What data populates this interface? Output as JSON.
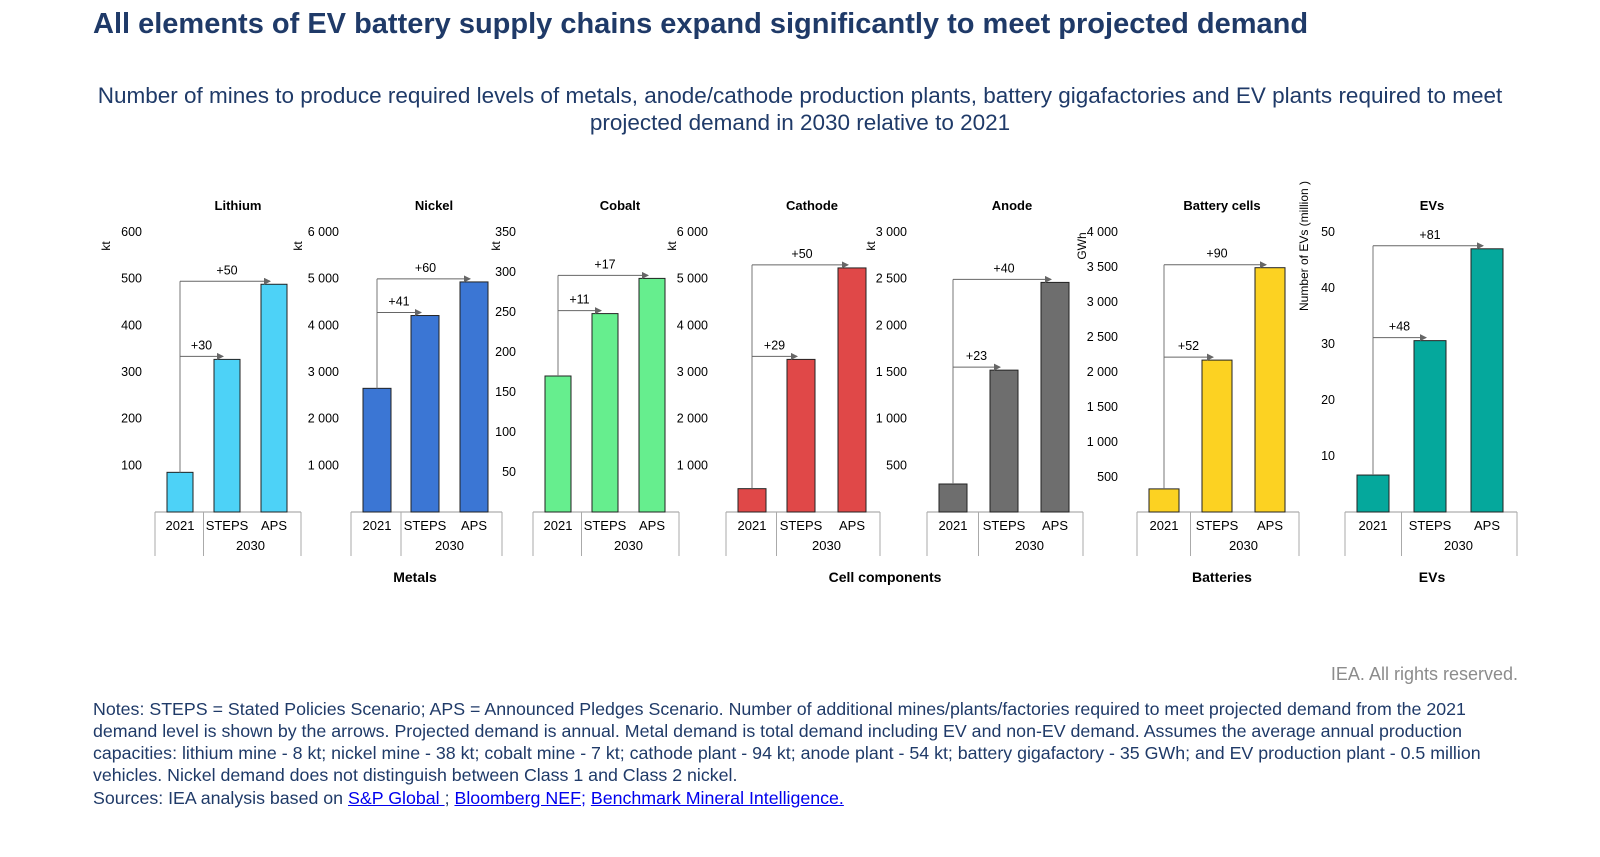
{
  "title": "All elements of EV battery supply chains expand significantly to meet projected demand",
  "subtitle": "Number of mines to produce required levels of metals, anode/cathode production plants, battery gigafactories and EV plants required to meet projected demand in 2030 relative to 2021",
  "copyright": "IEA. All rights reserved.",
  "notes": "Notes: STEPS = Stated Policies Scenario; APS = Announced Pledges Scenario. Number of additional mines/plants/factories required to meet projected demand from the 2021 demand level is shown by the arrows. Projected demand is annual. Metal demand is total demand including EV and non-EV demand. Assumes the average annual production capacities: lithium mine - 8 kt; nickel mine - 38 kt; cobalt mine - 7 kt; cathode plant - 94 kt; anode plant - 54 kt; battery gigafactory - 35 GWh; and EV production plant - 0.5 million vehicles. Nickel demand does not distinguish between Class 1 and Class 2 nickel.",
  "sources": {
    "prefix": "Sources: IEA analysis based on ",
    "link1": "S&P Global ",
    "sep1": "; ",
    "link2": "Bloomberg NEF;",
    "sep2": " ",
    "link3": "Benchmark Mineral Intelligence."
  },
  "groups": [
    "Metals",
    "Cell components",
    "Batteries",
    "EVs"
  ],
  "chart_data": [
    {
      "type": "bar",
      "title": "Lithium",
      "ylabel": "kt",
      "categories": [
        "2021",
        "STEPS",
        "APS"
      ],
      "group_label": "2030",
      "values": [
        85,
        327,
        488
      ],
      "ylim": [
        0,
        600
      ],
      "ticks": [
        100,
        200,
        300,
        400,
        500,
        600
      ],
      "ticklabels": [
        "100",
        "200",
        "300",
        "400",
        "500",
        "600"
      ],
      "arrows": [
        "+30",
        "+50"
      ],
      "color": "#4dd2f7"
    },
    {
      "type": "bar",
      "title": "Nickel",
      "ylabel": "kt",
      "categories": [
        "2021",
        "STEPS",
        "APS"
      ],
      "group_label": "2030",
      "values": [
        2650,
        4210,
        4930
      ],
      "ylim": [
        0,
        6000
      ],
      "ticks": [
        1000,
        2000,
        3000,
        4000,
        5000,
        6000
      ],
      "ticklabels": [
        "1 000",
        "2 000",
        "3 000",
        "4 000",
        "5 000",
        "6 000"
      ],
      "arrows": [
        "+41",
        "+60"
      ],
      "color": "#3b76d4"
    },
    {
      "type": "bar",
      "title": "Cobalt",
      "ylabel": "kt",
      "categories": [
        "2021",
        "STEPS",
        "APS"
      ],
      "group_label": "2030",
      "values": [
        170,
        248,
        292
      ],
      "ylim": [
        0,
        350
      ],
      "ticks": [
        50,
        100,
        150,
        200,
        250,
        300,
        350
      ],
      "ticklabels": [
        "50",
        "100",
        "150",
        "200",
        "250",
        "300",
        "350"
      ],
      "arrows": [
        "+11",
        "+17"
      ],
      "color": "#66ee8e"
    },
    {
      "type": "bar",
      "title": "Cathode",
      "ylabel": "kt",
      "categories": [
        "2021",
        "STEPS",
        "APS"
      ],
      "group_label": "2030",
      "values": [
        500,
        3270,
        5230
      ],
      "ylim": [
        0,
        6000
      ],
      "ticks": [
        1000,
        2000,
        3000,
        4000,
        5000,
        6000
      ],
      "ticklabels": [
        "1 000",
        "2 000",
        "3 000",
        "4 000",
        "5 000",
        "6 000"
      ],
      "arrows": [
        "+29",
        "+50"
      ],
      "color": "#e04848"
    },
    {
      "type": "bar",
      "title": "Anode",
      "ylabel": "kt",
      "categories": [
        "2021",
        "STEPS",
        "APS"
      ],
      "group_label": "2030",
      "values": [
        300,
        1520,
        2460
      ],
      "ylim": [
        0,
        3000
      ],
      "ticks": [
        500,
        1000,
        1500,
        2000,
        2500,
        3000
      ],
      "ticklabels": [
        "500",
        "1 000",
        "1 500",
        "2 000",
        "2 500",
        "3 000"
      ],
      "arrows": [
        "+23",
        "+40"
      ],
      "color": "#6e6e6e"
    },
    {
      "type": "bar",
      "title": "Battery cells",
      "ylabel": "GWh",
      "categories": [
        "2021",
        "STEPS",
        "APS"
      ],
      "group_label": "2030",
      "values": [
        330,
        2170,
        3490
      ],
      "ylim": [
        0,
        4000
      ],
      "ticks": [
        500,
        1000,
        1500,
        2000,
        2500,
        3000,
        3500,
        4000
      ],
      "ticklabels": [
        "500",
        "1 000",
        "1 500",
        "2 000",
        "2 500",
        "3 000",
        "3 500",
        "4 000"
      ],
      "arrows": [
        "+52",
        "+90"
      ],
      "color": "#fcd222"
    },
    {
      "type": "bar",
      "title": "EVs",
      "ylabel": "Number of EVs (million )",
      "categories": [
        "2021",
        "STEPS",
        "APS"
      ],
      "group_label": "2030",
      "values": [
        6.6,
        30.6,
        47
      ],
      "ylim": [
        0,
        50
      ],
      "ticks": [
        10,
        20,
        30,
        40,
        50
      ],
      "ticklabels": [
        "10",
        "20",
        "30",
        "40",
        "50"
      ],
      "arrows": [
        "+48",
        "+81"
      ],
      "color": "#05a89c"
    }
  ]
}
